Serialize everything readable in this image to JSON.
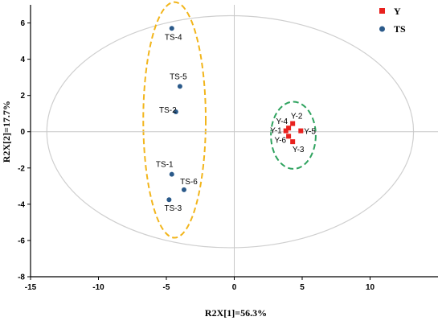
{
  "chart_data": {
    "type": "scatter",
    "xlabel": "R2X[1]=56.3%",
    "ylabel": "R2X[2]=17.7%",
    "xlim": [
      -15,
      15
    ],
    "ylim": [
      -8,
      7
    ],
    "xticks": [
      -15,
      -10,
      -5,
      0,
      5,
      10
    ],
    "yticks": [
      -8,
      -6,
      -4,
      -2,
      0,
      2,
      4,
      6
    ],
    "grid": false,
    "legend_position": "top-right",
    "series": [
      {
        "name": "Y",
        "color": "#e8211e",
        "marker": "square",
        "points": [
          {
            "label": "Y-1",
            "x": 3.8,
            "y": 0.05
          },
          {
            "label": "Y-2",
            "x": 4.3,
            "y": 0.45
          },
          {
            "label": "Y-3",
            "x": 4.3,
            "y": -0.55
          },
          {
            "label": "Y-4",
            "x": 4.0,
            "y": 0.2
          },
          {
            "label": "Y-5",
            "x": 4.9,
            "y": 0.05
          },
          {
            "label": "Y-6",
            "x": 4.0,
            "y": -0.25
          }
        ]
      },
      {
        "name": "TS",
        "color": "#2b5a8a",
        "marker": "circle",
        "points": [
          {
            "label": "TS-1",
            "x": -4.6,
            "y": -2.35
          },
          {
            "label": "TS-2",
            "x": -4.3,
            "y": 1.1
          },
          {
            "label": "TS-3",
            "x": -4.8,
            "y": -3.75
          },
          {
            "label": "TS-4",
            "x": -4.6,
            "y": 5.7
          },
          {
            "label": "TS-5",
            "x": -4.0,
            "y": 2.5
          },
          {
            "label": "TS-6",
            "x": -3.7,
            "y": -3.2
          }
        ]
      }
    ],
    "ellipses": [
      {
        "kind": "confidence",
        "cx": -0.3,
        "cy": 0,
        "rx": 13.5,
        "ry": 6.4,
        "color": "#cfcfcf",
        "dashed": false
      },
      {
        "kind": "group-TS",
        "cx": -4.4,
        "cy": 0.65,
        "rx": 2.3,
        "ry": 6.5,
        "color": "#f2b51b",
        "dashed": true
      },
      {
        "kind": "group-Y",
        "cx": 4.35,
        "cy": -0.2,
        "rx": 1.65,
        "ry": 1.85,
        "color": "#2fa35f",
        "dashed": true
      }
    ]
  }
}
